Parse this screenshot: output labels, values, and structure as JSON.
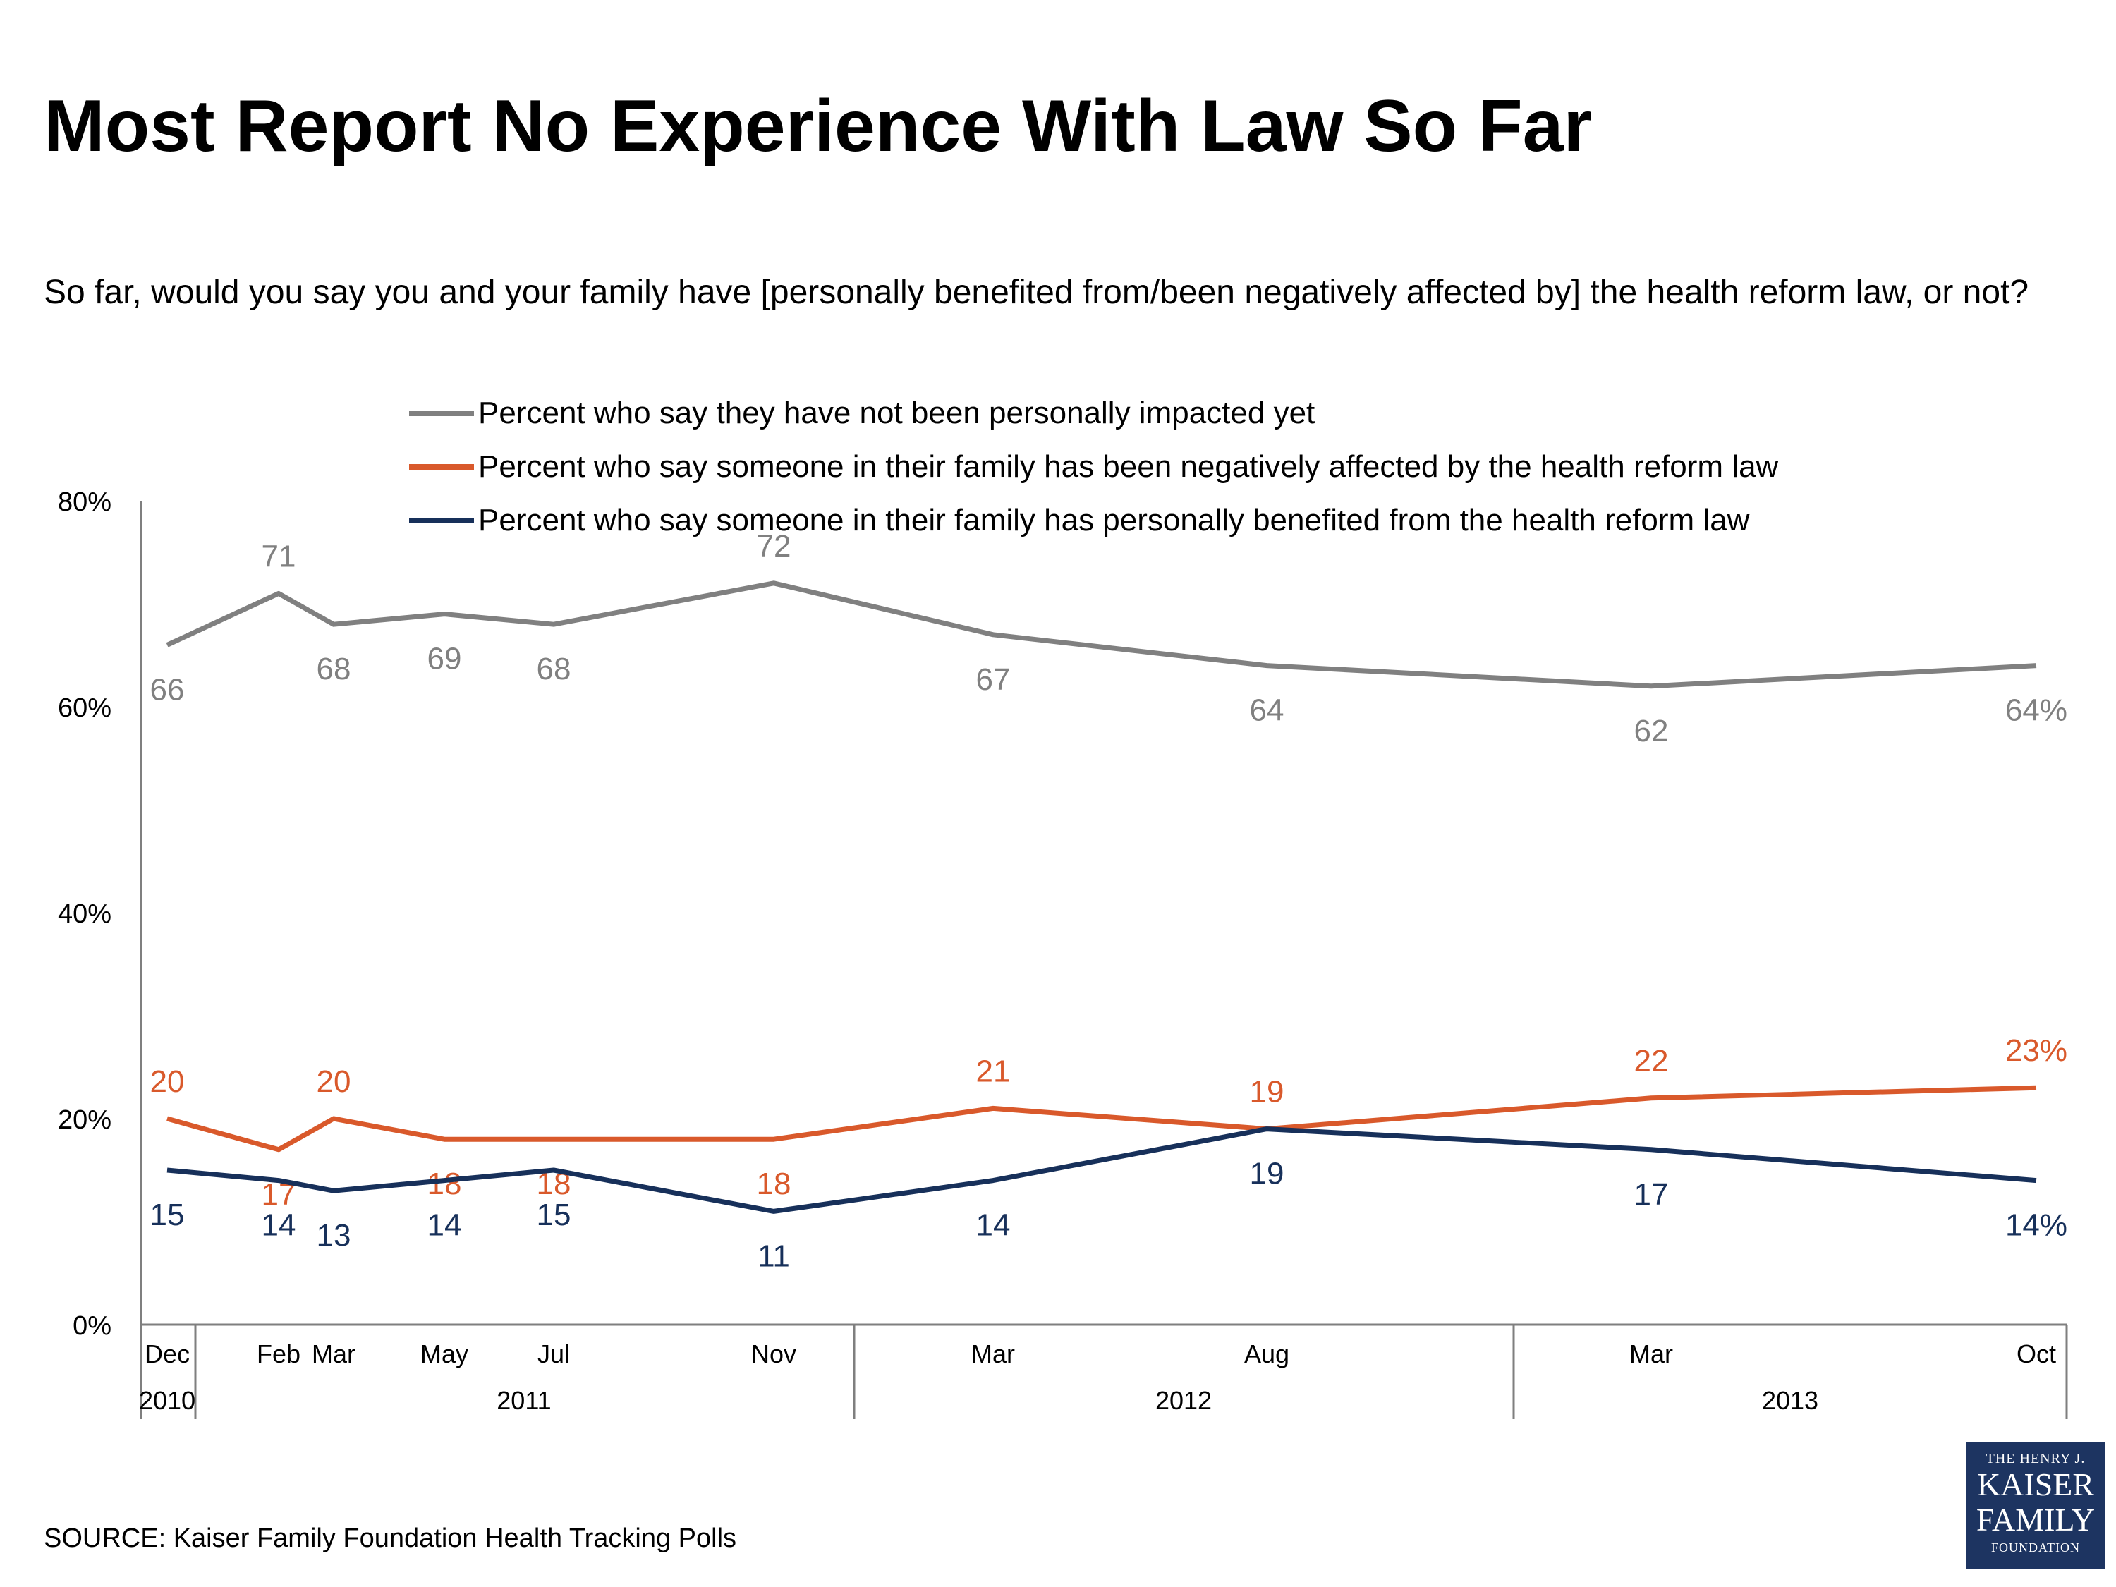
{
  "title": "Most Report No Experience With Law So Far",
  "subtitle": "So far, would you say you and your family have [personally benefited from/been negatively affected by] the health reform law, or not?",
  "source": "SOURCE: Kaiser Family Foundation Health Tracking Polls",
  "logo": {
    "line1": "THE HENRY J.",
    "line2": "KAISER",
    "line3": "FAMILY",
    "line4": "FOUNDATION"
  },
  "colors": {
    "gray": "#808080",
    "orange": "#d9592b",
    "navy": "#17305a",
    "axis": "#7f7f7f"
  },
  "chart_data": {
    "type": "line",
    "title": "Most Report No Experience With Law So Far",
    "subtitle": "So far, would you say you and your family have [personally benefited from/been negatively affected by] the health reform law, or not?",
    "categories": [
      "Dec 2010",
      "Feb 2011",
      "Mar 2011",
      "May 2011",
      "Jul 2011",
      "Nov 2011",
      "Mar 2012",
      "Aug 2012",
      "Mar 2013",
      "Oct 2013"
    ],
    "x_tick_labels": [
      "Dec",
      "Feb",
      "Mar",
      "May",
      "Jul",
      "Nov",
      "Mar",
      "Aug",
      "Mar",
      "Oct"
    ],
    "x": [
      "2010-12",
      "2011-02",
      "2011-03",
      "2011-05",
      "2011-07",
      "2011-11",
      "2012-03",
      "2012-08",
      "2013-03",
      "2013-10"
    ],
    "year_labels": [
      "2010",
      "2011",
      "2012",
      "2013"
    ],
    "y_ticks": [
      "0%",
      "20%",
      "40%",
      "60%",
      "80%"
    ],
    "ylim": [
      0,
      80
    ],
    "xlabel": "",
    "ylabel": "",
    "grid": false,
    "legend_position": "top",
    "series": [
      {
        "name": "Percent who say they have not been personally impacted yet",
        "color": "#808080",
        "values": [
          66,
          71,
          68,
          69,
          68,
          72,
          67,
          64,
          62,
          64
        ],
        "labels": [
          "66",
          "71",
          "68",
          "69",
          "68",
          "72",
          "67",
          "64",
          "62",
          "64%"
        ]
      },
      {
        "name": "Percent who say someone in their family has been negatively affected by the health reform law",
        "color": "#d9592b",
        "values": [
          20,
          17,
          20,
          18,
          18,
          18,
          21,
          19,
          22,
          23
        ],
        "labels": [
          "20",
          "17",
          "20",
          "18",
          "18",
          "18",
          "21",
          "19",
          "22",
          "23%"
        ]
      },
      {
        "name": "Percent who say someone in their family has personally benefited from the health reform law",
        "color": "#17305a",
        "values": [
          15,
          14,
          13,
          14,
          15,
          11,
          14,
          19,
          17,
          14
        ],
        "labels": [
          "15",
          "14",
          "13",
          "14",
          "15",
          "11",
          "14",
          "19",
          "17",
          "14%"
        ]
      }
    ]
  }
}
